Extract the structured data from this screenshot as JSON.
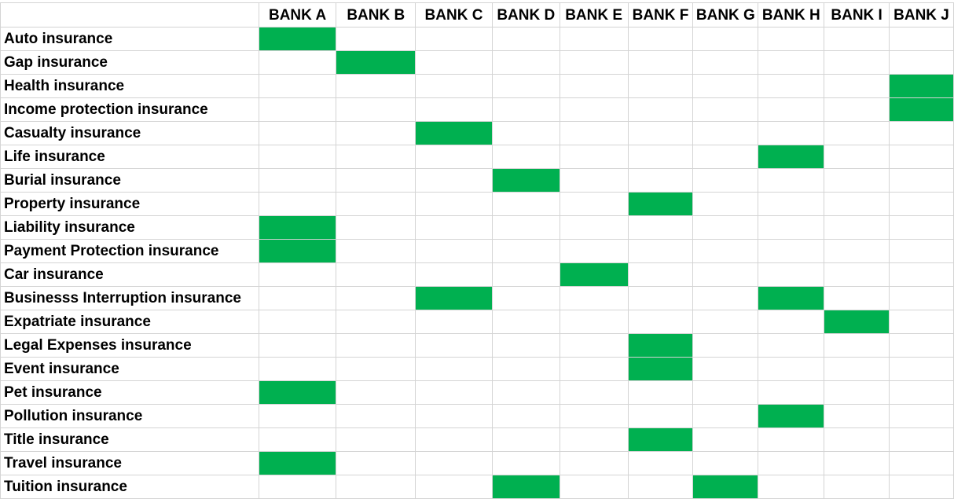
{
  "columns": [
    "BANK A",
    "BANK B",
    "BANK C",
    "BANK D",
    "BANK E",
    "BANK F",
    "BANK G",
    "BANK H",
    "BANK I",
    "BANK J"
  ],
  "highlight_color": "#00b050",
  "rows": [
    {
      "label": "Auto insurance",
      "marks": [
        1,
        0,
        0,
        0,
        0,
        0,
        0,
        0,
        0,
        0
      ]
    },
    {
      "label": "Gap insurance",
      "marks": [
        0,
        1,
        0,
        0,
        0,
        0,
        0,
        0,
        0,
        0
      ]
    },
    {
      "label": "Health insurance",
      "marks": [
        0,
        0,
        0,
        0,
        0,
        0,
        0,
        0,
        0,
        1
      ]
    },
    {
      "label": "Income protection insurance",
      "marks": [
        0,
        0,
        0,
        0,
        0,
        0,
        0,
        0,
        0,
        1
      ]
    },
    {
      "label": "Casualty insurance",
      "marks": [
        0,
        0,
        1,
        0,
        0,
        0,
        0,
        0,
        0,
        0
      ]
    },
    {
      "label": "Life insurance",
      "marks": [
        0,
        0,
        0,
        0,
        0,
        0,
        0,
        1,
        0,
        0
      ]
    },
    {
      "label": "Burial insurance",
      "marks": [
        0,
        0,
        0,
        1,
        0,
        0,
        0,
        0,
        0,
        0
      ]
    },
    {
      "label": "Property insurance",
      "marks": [
        0,
        0,
        0,
        0,
        0,
        1,
        0,
        0,
        0,
        0
      ]
    },
    {
      "label": "Liability insurance",
      "marks": [
        1,
        0,
        0,
        0,
        0,
        0,
        0,
        0,
        0,
        0
      ]
    },
    {
      "label": "Payment Protection insurance",
      "marks": [
        1,
        0,
        0,
        0,
        0,
        0,
        0,
        0,
        0,
        0
      ]
    },
    {
      "label": "Car insurance",
      "marks": [
        0,
        0,
        0,
        0,
        1,
        0,
        0,
        0,
        0,
        0
      ]
    },
    {
      "label": "Businesss Interruption insurance",
      "marks": [
        0,
        0,
        1,
        0,
        0,
        0,
        0,
        1,
        0,
        0
      ]
    },
    {
      "label": "Expatriate insurance",
      "marks": [
        0,
        0,
        0,
        0,
        0,
        0,
        0,
        0,
        1,
        0
      ]
    },
    {
      "label": "Legal Expenses insurance",
      "marks": [
        0,
        0,
        0,
        0,
        0,
        1,
        0,
        0,
        0,
        0
      ]
    },
    {
      "label": "Event insurance",
      "marks": [
        0,
        0,
        0,
        0,
        0,
        1,
        0,
        0,
        0,
        0
      ]
    },
    {
      "label": "Pet insurance",
      "marks": [
        1,
        0,
        0,
        0,
        0,
        0,
        0,
        0,
        0,
        0
      ]
    },
    {
      "label": "Pollution insurance",
      "marks": [
        0,
        0,
        0,
        0,
        0,
        0,
        0,
        1,
        0,
        0
      ]
    },
    {
      "label": "Title insurance",
      "marks": [
        0,
        0,
        0,
        0,
        0,
        1,
        0,
        0,
        0,
        0
      ]
    },
    {
      "label": "Travel insurance",
      "marks": [
        1,
        0,
        0,
        0,
        0,
        0,
        0,
        0,
        0,
        0
      ]
    },
    {
      "label": "Tuition insurance",
      "marks": [
        0,
        0,
        0,
        1,
        0,
        0,
        1,
        0,
        0,
        0
      ]
    }
  ]
}
